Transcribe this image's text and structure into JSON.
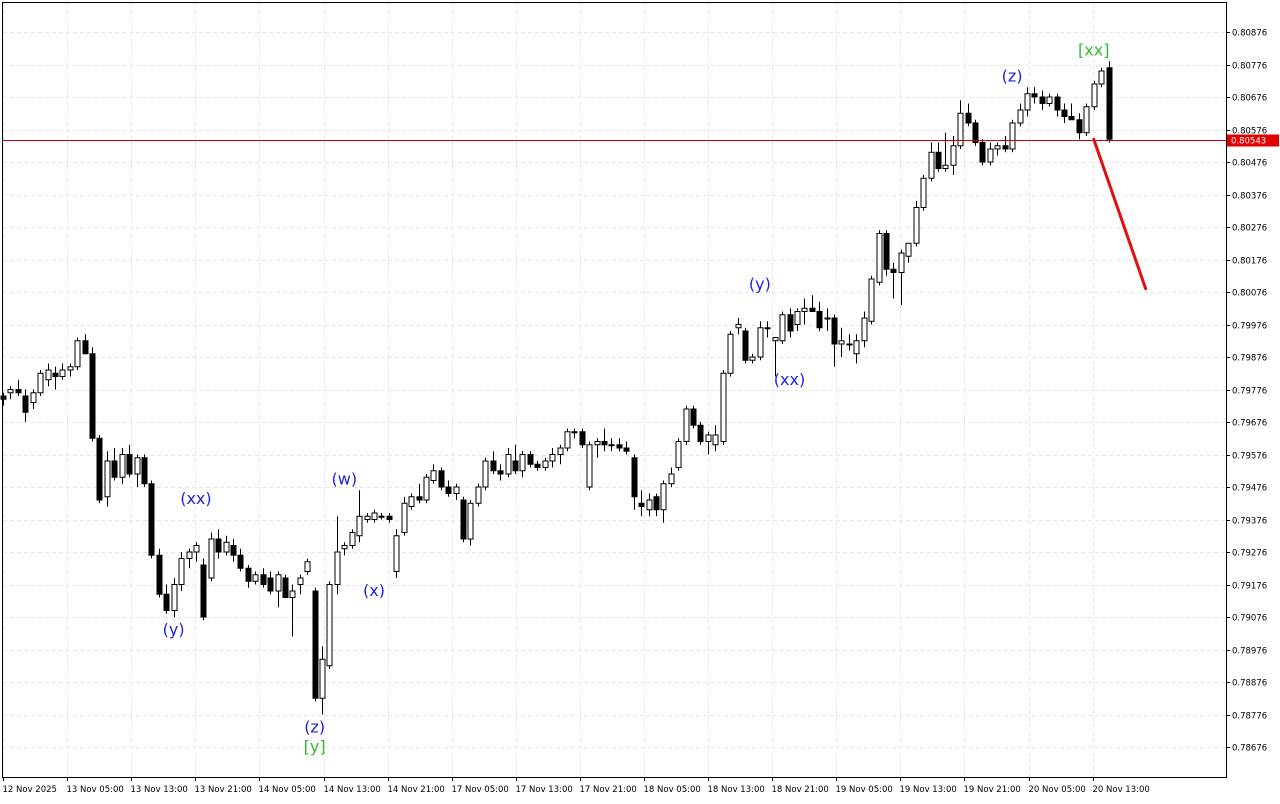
{
  "chart_data": {
    "type": "candlestick",
    "title": "",
    "xlabel": "",
    "ylabel": "",
    "ylim": [
      0.78626,
      0.80926
    ],
    "grid": true,
    "y_ticks": [
      "0.80876",
      "0.80776",
      "0.80676",
      "0.80576",
      "0.80476",
      "0.80376",
      "0.80276",
      "0.80176",
      "0.80076",
      "0.79976",
      "0.79876",
      "0.79776",
      "0.79676",
      "0.79576",
      "0.79476",
      "0.79376",
      "0.79276",
      "0.79176",
      "0.79076",
      "0.78976",
      "0.78876",
      "0.78776",
      "0.78676"
    ],
    "x_ticks": [
      "12 Nov 2025",
      "13 Nov 05:00",
      "13 Nov 13:00",
      "13 Nov 21:00",
      "14 Nov 05:00",
      "14 Nov 13:00",
      "14 Nov 21:00",
      "17 Nov 05:00",
      "17 Nov 13:00",
      "17 Nov 21:00",
      "18 Nov 05:00",
      "18 Nov 13:00",
      "18 Nov 21:00",
      "19 Nov 05:00",
      "19 Nov 13:00",
      "19 Nov 21:00",
      "20 Nov 05:00",
      "20 Nov 13:00"
    ],
    "current_price": "0.80543",
    "candles": [
      [
        0.79756,
        0.79766,
        0.79726,
        0.79746
      ],
      [
        0.79766,
        0.79786,
        0.79746,
        0.79776
      ],
      [
        0.79776,
        0.79806,
        0.79756,
        0.79766
      ],
      [
        0.79756,
        0.79776,
        0.79676,
        0.79706
      ],
      [
        0.79736,
        0.79776,
        0.79716,
        0.79766
      ],
      [
        0.79766,
        0.79836,
        0.79756,
        0.79826
      ],
      [
        0.79806,
        0.79856,
        0.79786,
        0.79836
      ],
      [
        0.79826,
        0.79846,
        0.79776,
        0.79816
      ],
      [
        0.79816,
        0.79856,
        0.79806,
        0.79836
      ],
      [
        0.79836,
        0.79856,
        0.79816,
        0.79846
      ],
      [
        0.79846,
        0.79936,
        0.79836,
        0.79926
      ],
      [
        0.79926,
        0.79946,
        0.79886,
        0.79886
      ],
      [
        0.79886,
        0.79906,
        0.79616,
        0.79626
      ],
      [
        0.79626,
        0.79636,
        0.79426,
        0.79436
      ],
      [
        0.79446,
        0.79586,
        0.79416,
        0.79556
      ],
      [
        0.79556,
        0.79596,
        0.79496,
        0.79506
      ],
      [
        0.79506,
        0.79596,
        0.79486,
        0.79576
      ],
      [
        0.79576,
        0.79606,
        0.79506,
        0.79516
      ],
      [
        0.79516,
        0.79576,
        0.79476,
        0.79566
      ],
      [
        0.79566,
        0.79576,
        0.79476,
        0.79486
      ],
      [
        0.79486,
        0.79496,
        0.79256,
        0.79266
      ],
      [
        0.79266,
        0.79286,
        0.79136,
        0.79146
      ],
      [
        0.79146,
        0.79176,
        0.79086,
        0.79096
      ],
      [
        0.79096,
        0.79196,
        0.79076,
        0.79176
      ],
      [
        0.79176,
        0.79276,
        0.79156,
        0.79256
      ],
      [
        0.79256,
        0.79286,
        0.79226,
        0.79276
      ],
      [
        0.79276,
        0.79306,
        0.79246,
        0.79296
      ],
      [
        0.79236,
        0.79256,
        0.79066,
        0.79076
      ],
      [
        0.79196,
        0.79336,
        0.79186,
        0.79316
      ],
      [
        0.79316,
        0.79346,
        0.79256,
        0.79276
      ],
      [
        0.79276,
        0.79326,
        0.79266,
        0.79306
      ],
      [
        0.79296,
        0.79316,
        0.79246,
        0.79266
      ],
      [
        0.79266,
        0.79286,
        0.79216,
        0.79226
      ],
      [
        0.79226,
        0.79236,
        0.79166,
        0.79186
      ],
      [
        0.79186,
        0.79216,
        0.79176,
        0.79206
      ],
      [
        0.79206,
        0.79226,
        0.79166,
        0.79176
      ],
      [
        0.79196,
        0.79216,
        0.79146,
        0.79156
      ],
      [
        0.79156,
        0.79216,
        0.79106,
        0.79206
      ],
      [
        0.79196,
        0.79206,
        0.79136,
        0.79136
      ],
      [
        0.79136,
        0.79176,
        0.79016,
        0.79156
      ],
      [
        0.79176,
        0.79206,
        0.79146,
        0.79196
      ],
      [
        0.79216,
        0.79256,
        0.79206,
        0.79246
      ],
      [
        0.79156,
        0.79166,
        0.78816,
        0.78826
      ],
      [
        0.78826,
        0.78986,
        0.78776,
        0.78946
      ],
      [
        0.78926,
        0.79186,
        0.78916,
        0.79176
      ],
      [
        0.79176,
        0.79386,
        0.79146,
        0.79276
      ],
      [
        0.79286,
        0.79306,
        0.79266,
        0.79296
      ],
      [
        0.79296,
        0.79346,
        0.79286,
        0.79336
      ],
      [
        0.79326,
        0.79466,
        0.79306,
        0.79386
      ],
      [
        0.79376,
        0.79396,
        0.79366,
        0.79386
      ],
      [
        0.79376,
        0.79406,
        0.79366,
        0.79396
      ],
      [
        0.79386,
        0.79396,
        0.79376,
        0.79386
      ],
      [
        0.79386,
        0.79396,
        0.79366,
        0.79376
      ],
      [
        0.79216,
        0.79346,
        0.79196,
        0.79326
      ],
      [
        0.79336,
        0.79446,
        0.79326,
        0.79426
      ],
      [
        0.79416,
        0.79456,
        0.79406,
        0.79446
      ],
      [
        0.79446,
        0.79486,
        0.79426,
        0.79436
      ],
      [
        0.79436,
        0.79516,
        0.79426,
        0.79506
      ],
      [
        0.79496,
        0.79546,
        0.79486,
        0.79526
      ],
      [
        0.79526,
        0.79536,
        0.79466,
        0.79476
      ],
      [
        0.79476,
        0.79496,
        0.79446,
        0.79456
      ],
      [
        0.79456,
        0.79486,
        0.79436,
        0.79476
      ],
      [
        0.79436,
        0.79446,
        0.79306,
        0.79316
      ],
      [
        0.79316,
        0.79436,
        0.79296,
        0.79426
      ],
      [
        0.79426,
        0.79486,
        0.79416,
        0.79476
      ],
      [
        0.79476,
        0.79566,
        0.79466,
        0.79556
      ],
      [
        0.79556,
        0.79586,
        0.79516,
        0.79526
      ],
      [
        0.79526,
        0.79546,
        0.79496,
        0.79516
      ],
      [
        0.79516,
        0.79596,
        0.79506,
        0.79576
      ],
      [
        0.79556,
        0.79606,
        0.79516,
        0.79526
      ],
      [
        0.79526,
        0.79586,
        0.79506,
        0.79576
      ],
      [
        0.79576,
        0.79586,
        0.79536,
        0.79546
      ],
      [
        0.79546,
        0.79556,
        0.79526,
        0.79536
      ],
      [
        0.79536,
        0.79566,
        0.79526,
        0.79556
      ],
      [
        0.79556,
        0.79596,
        0.79536,
        0.79576
      ],
      [
        0.79576,
        0.79606,
        0.79546,
        0.79596
      ],
      [
        0.79596,
        0.79656,
        0.79586,
        0.79646
      ],
      [
        0.79646,
        0.79656,
        0.79626,
        0.79646
      ],
      [
        0.79646,
        0.79656,
        0.79596,
        0.79606
      ],
      [
        0.79476,
        0.79616,
        0.79466,
        0.79606
      ],
      [
        0.79606,
        0.79626,
        0.79566,
        0.79616
      ],
      [
        0.79616,
        0.79656,
        0.79586,
        0.79606
      ],
      [
        0.79606,
        0.79626,
        0.79586,
        0.79606
      ],
      [
        0.79606,
        0.79626,
        0.79586,
        0.79596
      ],
      [
        0.79596,
        0.79616,
        0.79576,
        0.79586
      ],
      [
        0.79566,
        0.79576,
        0.79406,
        0.79446
      ],
      [
        0.79426,
        0.79466,
        0.79386,
        0.79416
      ],
      [
        0.79406,
        0.79456,
        0.79386,
        0.79436
      ],
      [
        0.79446,
        0.79456,
        0.79386,
        0.79406
      ],
      [
        0.79406,
        0.79496,
        0.79366,
        0.79486
      ],
      [
        0.79486,
        0.79536,
        0.79476,
        0.79516
      ],
      [
        0.79536,
        0.79626,
        0.79526,
        0.79616
      ],
      [
        0.79616,
        0.79726,
        0.79606,
        0.79716
      ],
      [
        0.79716,
        0.79726,
        0.79656,
        0.79666
      ],
      [
        0.79666,
        0.79676,
        0.79606,
        0.79616
      ],
      [
        0.79616,
        0.79646,
        0.79576,
        0.79636
      ],
      [
        0.79606,
        0.79666,
        0.79586,
        0.79636
      ],
      [
        0.79616,
        0.79836,
        0.79606,
        0.79826
      ],
      [
        0.79826,
        0.79956,
        0.79816,
        0.79946
      ],
      [
        0.79966,
        0.79996,
        0.79946,
        0.79976
      ],
      [
        0.79956,
        0.79966,
        0.79856,
        0.79866
      ],
      [
        0.79866,
        0.79886,
        0.79856,
        0.79876
      ],
      [
        0.79876,
        0.79986,
        0.79866,
        0.79966
      ],
      [
        0.79966,
        0.79986,
        0.79936,
        0.79966
      ],
      [
        0.79926,
        0.79936,
        0.79816,
        0.79936
      ],
      [
        0.79926,
        0.80016,
        0.79916,
        0.80006
      ],
      [
        0.80006,
        0.80026,
        0.79936,
        0.79956
      ],
      [
        0.79976,
        0.80026,
        0.79956,
        0.80016
      ],
      [
        0.80016,
        0.80056,
        0.79976,
        0.80026
      ],
      [
        0.80026,
        0.80066,
        0.80016,
        0.80016
      ],
      [
        0.80016,
        0.80046,
        0.79956,
        0.79966
      ],
      [
        0.79996,
        0.80026,
        0.79956,
        0.79996
      ],
      [
        0.79996,
        0.80006,
        0.79846,
        0.79916
      ],
      [
        0.79916,
        0.79966,
        0.79876,
        0.79926
      ],
      [
        0.79916,
        0.79946,
        0.79896,
        0.79916
      ],
      [
        0.79886,
        0.79946,
        0.79856,
        0.79926
      ],
      [
        0.79926,
        0.80016,
        0.79906,
        0.79996
      ],
      [
        0.79986,
        0.80126,
        0.79976,
        0.80116
      ],
      [
        0.80106,
        0.80266,
        0.80096,
        0.80256
      ],
      [
        0.80256,
        0.80266,
        0.80126,
        0.80146
      ],
      [
        0.80146,
        0.80166,
        0.80056,
        0.80136
      ],
      [
        0.80136,
        0.80206,
        0.80036,
        0.80196
      ],
      [
        0.80186,
        0.80226,
        0.80166,
        0.80226
      ],
      [
        0.80226,
        0.80356,
        0.80216,
        0.80336
      ],
      [
        0.80336,
        0.80436,
        0.80326,
        0.80426
      ],
      [
        0.80426,
        0.80536,
        0.80416,
        0.80506
      ],
      [
        0.80506,
        0.80536,
        0.80446,
        0.80456
      ],
      [
        0.80456,
        0.80566,
        0.80446,
        0.80466
      ],
      [
        0.80466,
        0.80556,
        0.80436,
        0.80526
      ],
      [
        0.80526,
        0.80666,
        0.80516,
        0.80626
      ],
      [
        0.80626,
        0.80656,
        0.80586,
        0.80596
      ],
      [
        0.80596,
        0.80606,
        0.80526,
        0.80536
      ],
      [
        0.80536,
        0.80546,
        0.80466,
        0.80476
      ],
      [
        0.80476,
        0.80536,
        0.80466,
        0.80516
      ],
      [
        0.80516,
        0.80536,
        0.80496,
        0.80526
      ],
      [
        0.80526,
        0.80556,
        0.80506,
        0.80516
      ],
      [
        0.80516,
        0.80606,
        0.80506,
        0.80596
      ],
      [
        0.80596,
        0.80656,
        0.80586,
        0.80636
      ],
      [
        0.80636,
        0.80706,
        0.80616,
        0.80686
      ],
      [
        0.80686,
        0.80706,
        0.80656,
        0.80676
      ],
      [
        0.80676,
        0.80696,
        0.80636,
        0.80656
      ],
      [
        0.80656,
        0.80686,
        0.80646,
        0.80676
      ],
      [
        0.80676,
        0.80686,
        0.80616,
        0.80636
      ],
      [
        0.80636,
        0.80656,
        0.80596,
        0.80616
      ],
      [
        0.80616,
        0.80656,
        0.80606,
        0.80606
      ],
      [
        0.80606,
        0.80626,
        0.80546,
        0.80566
      ],
      [
        0.80566,
        0.80656,
        0.80556,
        0.80646
      ],
      [
        0.80646,
        0.80726,
        0.80636,
        0.80716
      ],
      [
        0.80716,
        0.80766,
        0.80706,
        0.80756
      ],
      [
        0.80766,
        0.80786,
        0.80536,
        0.80546
      ]
    ],
    "wave_labels": [
      {
        "text": "(xx)",
        "candle": 26,
        "price": 0.79406,
        "color": "#1f1fe0",
        "position": "above"
      },
      {
        "text": "(y)",
        "candle": 23,
        "price": 0.79076,
        "color": "#1f1fe0",
        "position": "below"
      },
      {
        "text": "(w)",
        "candle": 46,
        "price": 0.79466,
        "color": "#1f1fe0",
        "position": "above"
      },
      {
        "text": "(z)",
        "candle": 42,
        "price": 0.78776,
        "color": "#1f1fe0",
        "position": "below"
      },
      {
        "text": "[y]",
        "candle": 42,
        "price": 0.78716,
        "color": "#33bb33",
        "position": "below"
      },
      {
        "text": "(x)",
        "candle": 50,
        "price": 0.79196,
        "color": "#1f1fe0",
        "position": "below"
      },
      {
        "text": "(y)",
        "candle": 102,
        "price": 0.80066,
        "color": "#1f1fe0",
        "position": "above"
      },
      {
        "text": "(xx)",
        "candle": 106,
        "price": 0.79846,
        "color": "#1f1fe0",
        "position": "below"
      },
      {
        "text": "(z)",
        "candle": 136,
        "price": 0.80706,
        "color": "#1f1fe0",
        "position": "above"
      },
      {
        "text": "[xx]",
        "candle": 147,
        "price": 0.80786,
        "color": "#33bb33",
        "position": "above"
      }
    ],
    "projection": {
      "from_candle": 147,
      "from_price": 0.80546,
      "to_offset_candles": 7,
      "to_price": 0.80086,
      "color": "#e01010"
    },
    "colors": {
      "background": "#ffffff",
      "grid": "#e6e6e6",
      "bull_fill": "#ffffff",
      "bear_fill": "#000000",
      "candle_outline": "#000000",
      "price_line": "#d40000",
      "price_tag_bg": "#e00000"
    }
  }
}
